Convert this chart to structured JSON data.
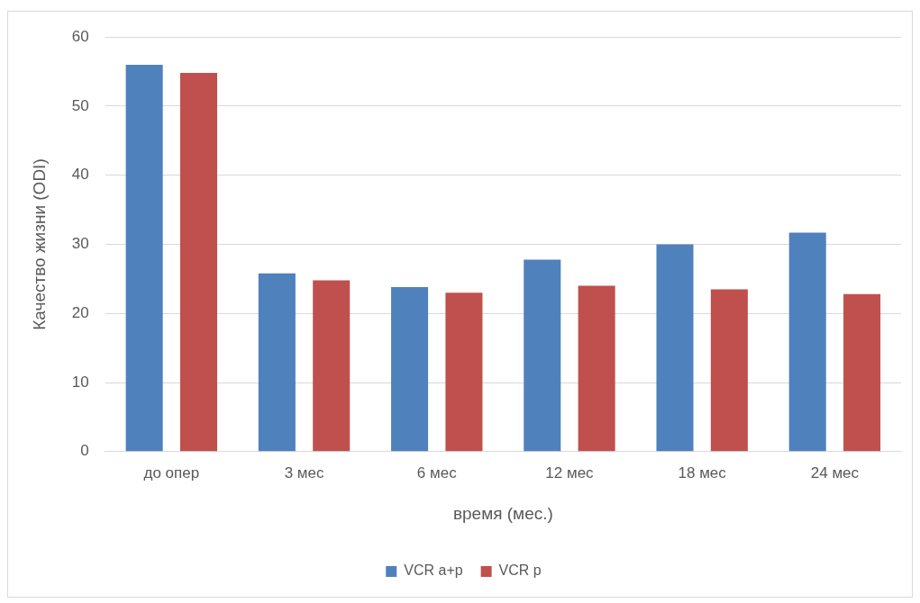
{
  "chart_data": {
    "type": "bar",
    "xlabel": "время (мес.)",
    "ylabel": "Качество жизни (ODI)",
    "categories": [
      "до опер",
      "3 мес",
      "6 мес",
      "12 мес",
      "18 мес",
      "24 мес"
    ],
    "series": [
      {
        "name": "VCR a+p",
        "color": "#4f81bd",
        "values": [
          56,
          25.8,
          23.8,
          27.8,
          30,
          31.7
        ]
      },
      {
        "name": "VCR p",
        "color": "#c0504d",
        "values": [
          54.8,
          24.8,
          23,
          24,
          23.5,
          22.8
        ]
      }
    ],
    "ylim": [
      0,
      60
    ],
    "yticks": [
      0,
      10,
      20,
      30,
      40,
      50,
      60
    ],
    "grid": "y",
    "legend": "bottom"
  }
}
